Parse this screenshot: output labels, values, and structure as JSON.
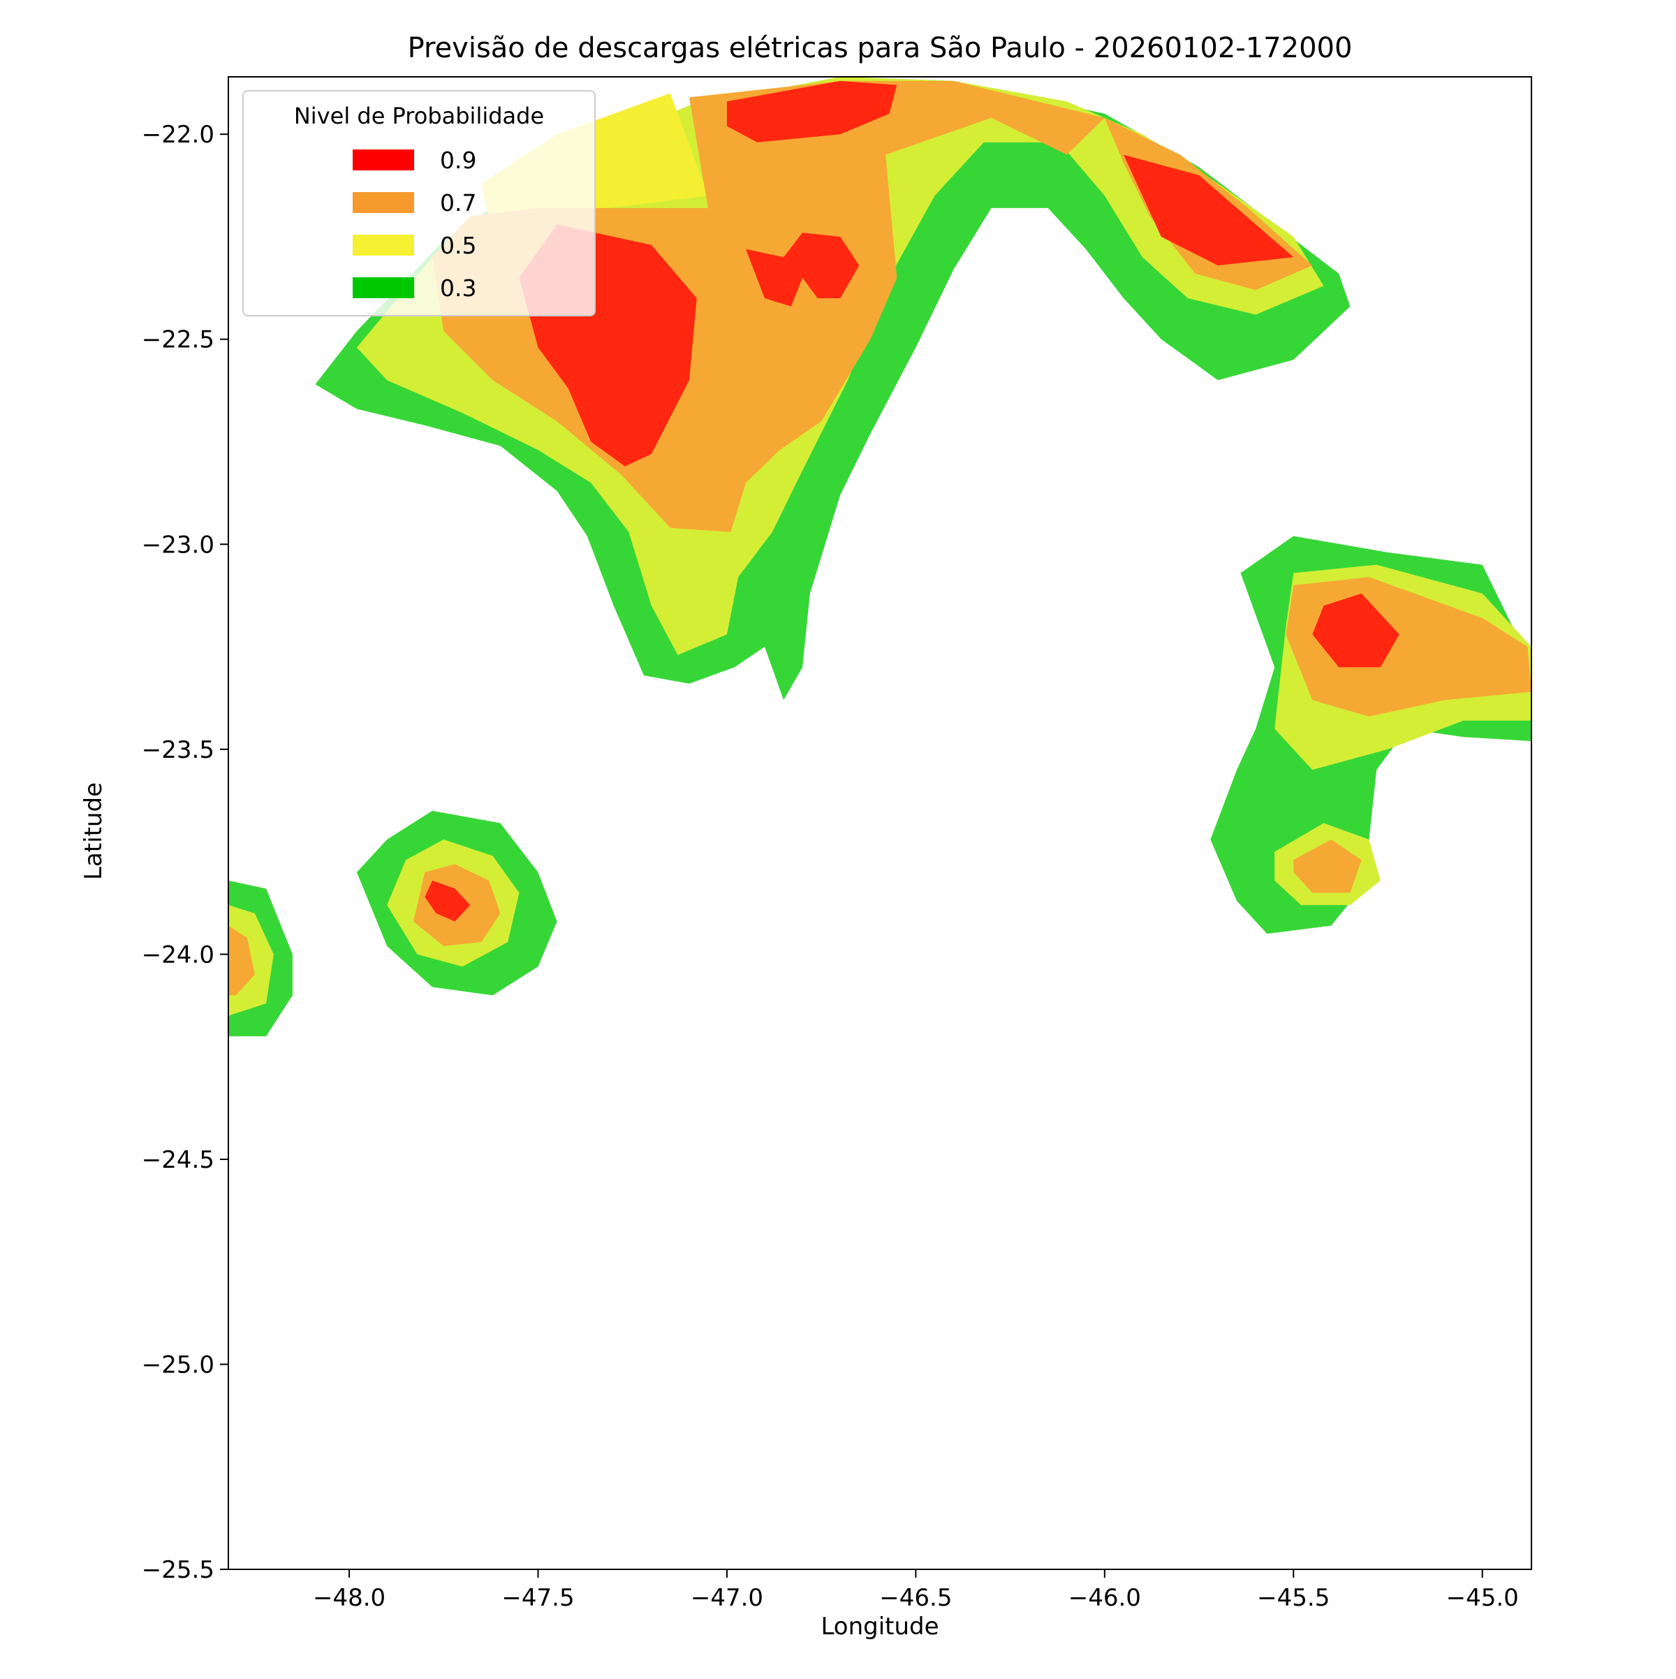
{
  "chart_data": {
    "type": "heatmap",
    "title": "Previsão de descargas elétricas para São Paulo - 20260102-172000",
    "xlabel": "Longitude",
    "ylabel": "Latitude",
    "xlim": [
      -48.32,
      -44.87
    ],
    "ylim": [
      -25.5,
      -21.86
    ],
    "x_ticks": [
      -48.0,
      -47.5,
      -47.0,
      -46.5,
      -46.0,
      -45.5,
      -45.0
    ],
    "x_tick_labels": [
      "−48.0",
      "−47.5",
      "−47.0",
      "−46.5",
      "−46.0",
      "−45.5",
      "−45.0"
    ],
    "y_ticks": [
      -22.0,
      -22.5,
      -23.0,
      -23.5,
      -24.0,
      -24.5,
      -25.0,
      -25.5
    ],
    "y_tick_labels": [
      "−22.0",
      "−22.5",
      "−23.0",
      "−23.5",
      "−24.0",
      "−24.5",
      "−25.0",
      "−25.5"
    ],
    "grid": false,
    "legend": {
      "title": "Nivel de Probabilidade",
      "placement": "top-left",
      "entries": [
        {
          "label": "0.9",
          "color": "#ff0000"
        },
        {
          "label": "0.7",
          "color": "#f79a2e"
        },
        {
          "label": "0.5",
          "color": "#f5f032"
        },
        {
          "label": "0.3",
          "color": "#00c800"
        }
      ]
    },
    "level_colors": {
      "0.3": "#37d637",
      "0.4": "#d4ee36",
      "0.5": "#f5ef34",
      "0.7": "#f6a834",
      "0.9": "#ff2710"
    },
    "regions": [
      {
        "name": "region-north-outer-green",
        "level": "0.3",
        "polygon": [
          [
            -48.09,
            -22.61
          ],
          [
            -47.98,
            -22.48
          ],
          [
            -47.75,
            -22.26
          ],
          [
            -47.45,
            -22.07
          ],
          [
            -47.1,
            -21.93
          ],
          [
            -46.7,
            -21.86
          ],
          [
            -46.4,
            -21.87
          ],
          [
            -46.0,
            -21.95
          ],
          [
            -45.75,
            -22.08
          ],
          [
            -45.55,
            -22.22
          ],
          [
            -45.38,
            -22.34
          ],
          [
            -45.35,
            -22.42
          ],
          [
            -45.5,
            -22.55
          ],
          [
            -45.7,
            -22.6
          ],
          [
            -45.85,
            -22.5
          ],
          [
            -45.95,
            -22.4
          ],
          [
            -46.05,
            -22.28
          ],
          [
            -46.15,
            -22.18
          ],
          [
            -46.3,
            -22.18
          ],
          [
            -46.4,
            -22.33
          ],
          [
            -46.5,
            -22.52
          ],
          [
            -46.62,
            -22.73
          ],
          [
            -46.7,
            -22.88
          ],
          [
            -46.78,
            -23.12
          ],
          [
            -46.8,
            -23.3
          ],
          [
            -46.85,
            -23.38
          ],
          [
            -46.9,
            -23.25
          ],
          [
            -46.98,
            -23.3
          ],
          [
            -47.1,
            -23.34
          ],
          [
            -47.22,
            -23.32
          ],
          [
            -47.3,
            -23.15
          ],
          [
            -47.37,
            -22.98
          ],
          [
            -47.45,
            -22.87
          ],
          [
            -47.6,
            -22.76
          ],
          [
            -47.8,
            -22.71
          ],
          [
            -47.98,
            -22.67
          ]
        ]
      },
      {
        "name": "region-north-mid-lime",
        "level": "0.4",
        "polygon": [
          [
            -47.98,
            -22.52
          ],
          [
            -47.78,
            -22.3
          ],
          [
            -47.48,
            -22.08
          ],
          [
            -47.1,
            -21.93
          ],
          [
            -46.7,
            -21.86
          ],
          [
            -46.4,
            -21.87
          ],
          [
            -46.1,
            -21.92
          ],
          [
            -45.9,
            -22.0
          ],
          [
            -45.7,
            -22.12
          ],
          [
            -45.5,
            -22.25
          ],
          [
            -45.42,
            -22.37
          ],
          [
            -45.6,
            -22.44
          ],
          [
            -45.78,
            -22.4
          ],
          [
            -45.9,
            -22.3
          ],
          [
            -46.0,
            -22.15
          ],
          [
            -46.12,
            -22.02
          ],
          [
            -46.32,
            -22.02
          ],
          [
            -46.45,
            -22.15
          ],
          [
            -46.57,
            -22.35
          ],
          [
            -46.68,
            -22.6
          ],
          [
            -46.8,
            -22.82
          ],
          [
            -46.88,
            -22.97
          ],
          [
            -46.97,
            -23.08
          ],
          [
            -47.0,
            -23.22
          ],
          [
            -47.13,
            -23.27
          ],
          [
            -47.2,
            -23.15
          ],
          [
            -47.26,
            -22.97
          ],
          [
            -47.36,
            -22.85
          ],
          [
            -47.5,
            -22.77
          ],
          [
            -47.7,
            -22.68
          ],
          [
            -47.9,
            -22.6
          ]
        ]
      },
      {
        "name": "region-north-yellow",
        "level": "0.5",
        "polygon": [
          [
            -47.65,
            -22.12
          ],
          [
            -47.45,
            -22.0
          ],
          [
            -47.15,
            -21.9
          ],
          [
            -47.05,
            -22.15
          ],
          [
            -47.4,
            -22.19
          ],
          [
            -47.62,
            -22.25
          ]
        ]
      },
      {
        "name": "region-north-west-orange",
        "level": "0.7",
        "polygon": [
          [
            -47.68,
            -22.2
          ],
          [
            -47.5,
            -22.18
          ],
          [
            -47.05,
            -22.18
          ],
          [
            -47.1,
            -21.91
          ],
          [
            -46.7,
            -21.87
          ],
          [
            -46.4,
            -21.87
          ],
          [
            -46.0,
            -21.96
          ],
          [
            -46.1,
            -22.05
          ],
          [
            -46.3,
            -21.96
          ],
          [
            -46.58,
            -22.05
          ],
          [
            -46.55,
            -22.35
          ],
          [
            -46.62,
            -22.5
          ],
          [
            -46.75,
            -22.7
          ],
          [
            -46.86,
            -22.77
          ],
          [
            -46.95,
            -22.85
          ],
          [
            -46.99,
            -22.97
          ],
          [
            -47.15,
            -22.96
          ],
          [
            -47.28,
            -22.83
          ],
          [
            -47.45,
            -22.7
          ],
          [
            -47.62,
            -22.6
          ],
          [
            -47.75,
            -22.48
          ],
          [
            -47.78,
            -22.3
          ]
        ]
      },
      {
        "name": "region-north-east-orange",
        "level": "0.7",
        "polygon": [
          [
            -46.0,
            -21.96
          ],
          [
            -45.8,
            -22.05
          ],
          [
            -45.62,
            -22.18
          ],
          [
            -45.45,
            -22.32
          ],
          [
            -45.6,
            -22.38
          ],
          [
            -45.76,
            -22.34
          ],
          [
            -45.88,
            -22.2
          ],
          [
            -45.95,
            -22.07
          ]
        ]
      },
      {
        "name": "region-north-red-west",
        "level": "0.9",
        "polygon": [
          [
            -47.45,
            -22.22
          ],
          [
            -47.2,
            -22.27
          ],
          [
            -47.08,
            -22.4
          ],
          [
            -47.1,
            -22.6
          ],
          [
            -47.2,
            -22.78
          ],
          [
            -47.27,
            -22.81
          ],
          [
            -47.36,
            -22.75
          ],
          [
            -47.42,
            -22.62
          ],
          [
            -47.5,
            -22.52
          ],
          [
            -47.55,
            -22.35
          ]
        ]
      },
      {
        "name": "region-north-red-top",
        "level": "0.9",
        "polygon": [
          [
            -47.0,
            -21.92
          ],
          [
            -46.7,
            -21.87
          ],
          [
            -46.55,
            -21.88
          ],
          [
            -46.57,
            -21.95
          ],
          [
            -46.7,
            -22.0
          ],
          [
            -46.92,
            -22.02
          ],
          [
            -47.0,
            -21.98
          ]
        ]
      },
      {
        "name": "region-north-red-center",
        "level": "0.9",
        "polygon": [
          [
            -46.95,
            -22.28
          ],
          [
            -46.9,
            -22.4
          ],
          [
            -46.83,
            -22.42
          ],
          [
            -46.8,
            -22.35
          ],
          [
            -46.76,
            -22.4
          ],
          [
            -46.7,
            -22.4
          ],
          [
            -46.65,
            -22.32
          ],
          [
            -46.7,
            -22.25
          ],
          [
            -46.8,
            -22.24
          ],
          [
            -46.85,
            -22.3
          ]
        ]
      },
      {
        "name": "region-north-red-east",
        "level": "0.9",
        "polygon": [
          [
            -45.95,
            -22.05
          ],
          [
            -45.75,
            -22.1
          ],
          [
            -45.6,
            -22.22
          ],
          [
            -45.5,
            -22.3
          ],
          [
            -45.7,
            -22.32
          ],
          [
            -45.85,
            -22.25
          ],
          [
            -45.9,
            -22.15
          ]
        ]
      },
      {
        "name": "region-east-outer-green",
        "level": "0.3",
        "polygon": [
          [
            -45.64,
            -23.07
          ],
          [
            -45.5,
            -22.98
          ],
          [
            -45.25,
            -23.02
          ],
          [
            -45.0,
            -23.05
          ],
          [
            -44.91,
            -23.22
          ],
          [
            -44.87,
            -23.38
          ],
          [
            -44.87,
            -23.48
          ],
          [
            -45.05,
            -23.47
          ],
          [
            -45.2,
            -23.45
          ],
          [
            -45.28,
            -23.55
          ],
          [
            -45.3,
            -23.72
          ],
          [
            -45.33,
            -23.85
          ],
          [
            -45.4,
            -23.93
          ],
          [
            -45.57,
            -23.95
          ],
          [
            -45.65,
            -23.87
          ],
          [
            -45.72,
            -23.72
          ],
          [
            -45.65,
            -23.55
          ],
          [
            -45.6,
            -23.45
          ],
          [
            -45.55,
            -23.3
          ]
        ]
      },
      {
        "name": "region-east-mid-lime",
        "level": "0.4",
        "polygon": [
          [
            -45.5,
            -23.07
          ],
          [
            -45.28,
            -23.05
          ],
          [
            -45.0,
            -23.12
          ],
          [
            -44.87,
            -23.25
          ],
          [
            -44.87,
            -23.43
          ],
          [
            -45.05,
            -23.43
          ],
          [
            -45.25,
            -23.5
          ],
          [
            -45.45,
            -23.55
          ],
          [
            -45.55,
            -23.45
          ],
          [
            -45.52,
            -23.2
          ]
        ]
      },
      {
        "name": "region-east-orange",
        "level": "0.7",
        "polygon": [
          [
            -45.5,
            -23.1
          ],
          [
            -45.3,
            -23.08
          ],
          [
            -45.0,
            -23.18
          ],
          [
            -44.88,
            -23.25
          ],
          [
            -44.87,
            -23.36
          ],
          [
            -45.1,
            -23.38
          ],
          [
            -45.3,
            -23.42
          ],
          [
            -45.45,
            -23.38
          ],
          [
            -45.52,
            -23.22
          ]
        ]
      },
      {
        "name": "region-east-red",
        "level": "0.9",
        "polygon": [
          [
            -45.42,
            -23.15
          ],
          [
            -45.32,
            -23.12
          ],
          [
            -45.22,
            -23.22
          ],
          [
            -45.27,
            -23.3
          ],
          [
            -45.38,
            -23.3
          ],
          [
            -45.45,
            -23.22
          ]
        ]
      },
      {
        "name": "region-southeast-lime",
        "level": "0.4",
        "polygon": [
          [
            -45.55,
            -23.75
          ],
          [
            -45.42,
            -23.68
          ],
          [
            -45.3,
            -23.72
          ],
          [
            -45.27,
            -23.82
          ],
          [
            -45.35,
            -23.88
          ],
          [
            -45.48,
            -23.88
          ],
          [
            -45.55,
            -23.82
          ]
        ]
      },
      {
        "name": "region-southeast-orange",
        "level": "0.7",
        "polygon": [
          [
            -45.5,
            -23.77
          ],
          [
            -45.4,
            -23.72
          ],
          [
            -45.32,
            -23.77
          ],
          [
            -45.35,
            -23.85
          ],
          [
            -45.45,
            -23.85
          ],
          [
            -45.5,
            -23.8
          ]
        ]
      },
      {
        "name": "region-southwest-green",
        "level": "0.3",
        "polygon": [
          [
            -47.9,
            -23.72
          ],
          [
            -47.78,
            -23.65
          ],
          [
            -47.6,
            -23.68
          ],
          [
            -47.5,
            -23.8
          ],
          [
            -47.45,
            -23.92
          ],
          [
            -47.5,
            -24.03
          ],
          [
            -47.62,
            -24.1
          ],
          [
            -47.78,
            -24.08
          ],
          [
            -47.9,
            -23.98
          ],
          [
            -47.98,
            -23.8
          ]
        ]
      },
      {
        "name": "region-southwest-lime",
        "level": "0.4",
        "polygon": [
          [
            -47.85,
            -23.77
          ],
          [
            -47.75,
            -23.72
          ],
          [
            -47.62,
            -23.76
          ],
          [
            -47.55,
            -23.85
          ],
          [
            -47.58,
            -23.97
          ],
          [
            -47.7,
            -24.03
          ],
          [
            -47.82,
            -24.0
          ],
          [
            -47.9,
            -23.88
          ]
        ]
      },
      {
        "name": "region-southwest-orange",
        "level": "0.7",
        "polygon": [
          [
            -47.8,
            -23.8
          ],
          [
            -47.72,
            -23.78
          ],
          [
            -47.63,
            -23.82
          ],
          [
            -47.6,
            -23.9
          ],
          [
            -47.65,
            -23.97
          ],
          [
            -47.75,
            -23.98
          ],
          [
            -47.83,
            -23.92
          ]
        ]
      },
      {
        "name": "region-southwest-red",
        "level": "0.9",
        "polygon": [
          [
            -47.78,
            -23.82
          ],
          [
            -47.72,
            -23.84
          ],
          [
            -47.68,
            -23.88
          ],
          [
            -47.72,
            -23.92
          ],
          [
            -47.77,
            -23.9
          ],
          [
            -47.8,
            -23.86
          ]
        ]
      },
      {
        "name": "region-west-edge-green",
        "level": "0.3",
        "polygon": [
          [
            -48.32,
            -23.82
          ],
          [
            -48.22,
            -23.84
          ],
          [
            -48.15,
            -24.0
          ],
          [
            -48.15,
            -24.1
          ],
          [
            -48.22,
            -24.2
          ],
          [
            -48.32,
            -24.2
          ]
        ]
      },
      {
        "name": "region-west-edge-lime",
        "level": "0.4",
        "polygon": [
          [
            -48.32,
            -23.88
          ],
          [
            -48.25,
            -23.9
          ],
          [
            -48.2,
            -24.0
          ],
          [
            -48.22,
            -24.12
          ],
          [
            -48.32,
            -24.15
          ]
        ]
      },
      {
        "name": "region-west-edge-orange",
        "level": "0.7",
        "polygon": [
          [
            -48.32,
            -23.93
          ],
          [
            -48.27,
            -23.96
          ],
          [
            -48.25,
            -24.05
          ],
          [
            -48.3,
            -24.1
          ],
          [
            -48.32,
            -24.1
          ]
        ]
      }
    ]
  }
}
